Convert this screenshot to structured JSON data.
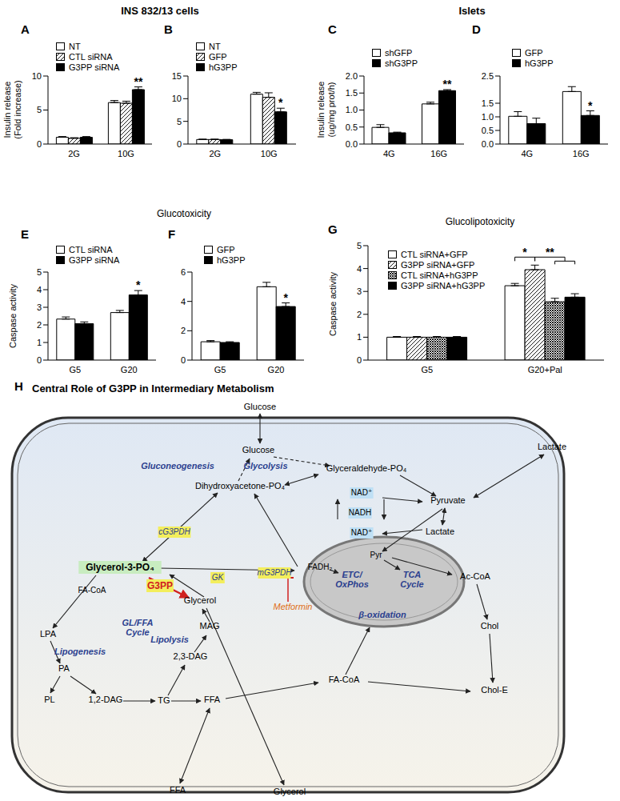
{
  "headers": [
    "INS 832/13 cells",
    "Islets",
    "Glucotoxicity",
    "Glucolipotoxicity"
  ],
  "chart_data": [
    {
      "type": "bar",
      "title": "A",
      "y_label": "Insulin release\n(Fold increase)",
      "categories": [
        "2G",
        "10G"
      ],
      "series": [
        {
          "name": "NT",
          "color": "#ffffff",
          "values": [
            1.0,
            6.1
          ],
          "errors": [
            0.1,
            0.3
          ]
        },
        {
          "name": "CTL siRNA",
          "color": "#000000",
          "values": [
            0.85,
            6.0
          ],
          "errors": [
            0.08,
            0.3
          ]
        },
        {
          "name": "G3PP siRNA",
          "color": "#000000",
          "values": [
            1.0,
            8.0
          ],
          "errors": [
            0.1,
            0.4
          ]
        }
      ],
      "ylim": [
        0,
        10
      ],
      "yticks": [
        0,
        5,
        10
      ],
      "annotations": [
        {
          "text": "**",
          "category": "10G",
          "series": [
            "G3PP siRNA"
          ]
        }
      ]
    },
    {
      "type": "bar",
      "title": "B",
      "categories": [
        "2G",
        "10G"
      ],
      "series": [
        {
          "name": "NT",
          "color": "#ffffff",
          "values": [
            1.0,
            11.0
          ],
          "errors": [
            0.08,
            0.4
          ]
        },
        {
          "name": "GFP",
          "color": "#000000",
          "values": [
            1.0,
            10.3
          ],
          "errors": [
            0.08,
            1.0
          ]
        },
        {
          "name": "hG3PP",
          "color": "#000000",
          "values": [
            0.95,
            7.1
          ],
          "errors": [
            0.08,
            0.8
          ]
        }
      ],
      "ylim": [
        0,
        15
      ],
      "yticks": [
        0,
        5,
        10,
        15
      ],
      "annotations": [
        {
          "text": "*",
          "category": "10G",
          "series": [
            "hG3PP"
          ]
        }
      ]
    },
    {
      "type": "bar",
      "title": "C",
      "y_label": "Insulin release\n(ug/mg prot/h)",
      "categories": [
        "4G",
        "16G"
      ],
      "series": [
        {
          "name": "shGFP",
          "color": "#ffffff",
          "values": [
            0.49,
            1.18
          ],
          "errors": [
            0.08,
            0.05
          ]
        },
        {
          "name": "shG3PP",
          "color": "#000000",
          "values": [
            0.33,
            1.57
          ],
          "errors": [
            0.02,
            0.03
          ]
        }
      ],
      "ylim": [
        0,
        2.0
      ],
      "yticks": [
        {
          "value": 0,
          "label": "0.0"
        },
        0.5,
        {
          "value": 1.0,
          "label": "1.0"
        },
        1.5,
        {
          "value": 2.0,
          "label": "2.0"
        }
      ],
      "annotations": [
        {
          "text": "**",
          "category": "16G",
          "series": [
            "shG3PP"
          ]
        }
      ]
    },
    {
      "type": "bar",
      "title": "D",
      "categories": [
        "4G",
        "16G"
      ],
      "series": [
        {
          "name": "GFP",
          "color": "#ffffff",
          "values": [
            1.02,
            1.93
          ],
          "errors": [
            0.17,
            0.18
          ]
        },
        {
          "name": "hG3PP",
          "color": "#000000",
          "values": [
            0.75,
            1.05
          ],
          "errors": [
            0.2,
            0.17
          ]
        }
      ],
      "ylim": [
        0,
        2.5
      ],
      "yticks": [
        {
          "value": 0,
          "label": "0.0"
        },
        0.5,
        {
          "value": 1.0,
          "label": "1.0"
        },
        1.5,
        {
          "value": 2.0,
          "label": "2.0"
        },
        2.5
      ],
      "annotations": [
        {
          "text": "*",
          "category": "16G",
          "series": [
            "hG3PP"
          ]
        }
      ]
    },
    {
      "type": "bar",
      "title": "E",
      "y_label": "Caspase activity",
      "categories": [
        "G5",
        "G20"
      ],
      "series": [
        {
          "name": "CTL siRNA",
          "color": "#ffffff",
          "values": [
            2.33,
            2.7
          ],
          "errors": [
            0.12,
            0.12
          ]
        },
        {
          "name": "G3PP siRNA",
          "color": "#000000",
          "values": [
            2.07,
            3.7
          ],
          "errors": [
            0.1,
            0.25
          ]
        }
      ],
      "ylim": [
        0,
        5
      ],
      "yticks": [
        0,
        1,
        2,
        3,
        4,
        5
      ],
      "annotations": [
        {
          "text": "*",
          "category": "G20",
          "series": [
            "G3PP siRNA"
          ]
        }
      ]
    },
    {
      "type": "bar",
      "title": "F",
      "categories": [
        "G5",
        "G20"
      ],
      "series": [
        {
          "name": "GFP",
          "color": "#ffffff",
          "values": [
            1.25,
            5.0
          ],
          "errors": [
            0.08,
            0.3
          ]
        },
        {
          "name": "hG3PP",
          "color": "#000000",
          "values": [
            1.2,
            3.65
          ],
          "errors": [
            0.05,
            0.25
          ]
        }
      ],
      "ylim": [
        0,
        6
      ],
      "yticks": [
        0,
        2,
        4,
        6
      ],
      "annotations": [
        {
          "text": "*",
          "category": "G20",
          "series": [
            "hG3PP"
          ]
        }
      ]
    },
    {
      "type": "bar",
      "title": "G",
      "y_label": "Caspase activity",
      "categories": [
        "G5",
        "G20+Pal"
      ],
      "series": [
        {
          "name": "CTL siRNA+GFP",
          "color": "#ffffff",
          "values": [
            1.0,
            3.25
          ],
          "errors": [
            0.03,
            0.1
          ]
        },
        {
          "name": "G3PP siRNA+GFP",
          "color": "#000000",
          "values": [
            1.0,
            3.95
          ],
          "errors": [
            0.03,
            0.2
          ]
        },
        {
          "name": "CTL siRNA+hG3PP",
          "color": "#000000",
          "values": [
            1.0,
            2.55
          ],
          "errors": [
            0.03,
            0.15
          ]
        },
        {
          "name": "G3PP siRNA+hG3PP",
          "color": "#000000",
          "values": [
            1.0,
            2.75
          ],
          "errors": [
            0.03,
            0.15
          ]
        }
      ],
      "ylim": [
        0,
        5
      ],
      "yticks": [
        0,
        1,
        2,
        3,
        4,
        5
      ],
      "annotations": [
        {
          "text": "*",
          "category": "G20+Pal",
          "series": [
            "CTL siRNA+GFP",
            "G3PP siRNA+GFP"
          ]
        },
        {
          "text": "**",
          "category": "G20+Pal",
          "series": [
            "G3PP siRNA+GFP",
            "CTL siRNA+hG3PP",
            "G3PP siRNA+hG3PP"
          ]
        }
      ]
    }
  ],
  "diagram": {
    "title": "H",
    "heading": "Central Role of G3PP in Intermediary Metabolism",
    "labels": [
      "Glucose",
      "Glucose",
      "Gluconeogenesis",
      "Glycolysis",
      "Glyceraldehyde-PO₄",
      "Dihydroxyacetone-PO₄",
      "NAD⁺",
      "NADH",
      "Pyruvate",
      "Lactate",
      "NAD⁺",
      "Lactate",
      "cG3PDH",
      "Glycerol-3-PO₄",
      "G3PP",
      "GK",
      "mG3PDH",
      "FADH₂",
      "Pyr",
      "ETC/\nOxPhos",
      "TCA\nCycle",
      "Ac-CoA",
      "FA-CoA",
      "Glycerol",
      "Metformin",
      "LPA",
      "GL/FFA\nCycle",
      "β-oxidation",
      "Lipolysis",
      "MAG",
      "Lipogenesis",
      "PA",
      "2,3-DAG",
      "Chol",
      "PL",
      "1,2-DAG",
      "TG",
      "FFA",
      "FA-CoA",
      "Chol-E",
      "FFA",
      "Glycerol"
    ]
  }
}
